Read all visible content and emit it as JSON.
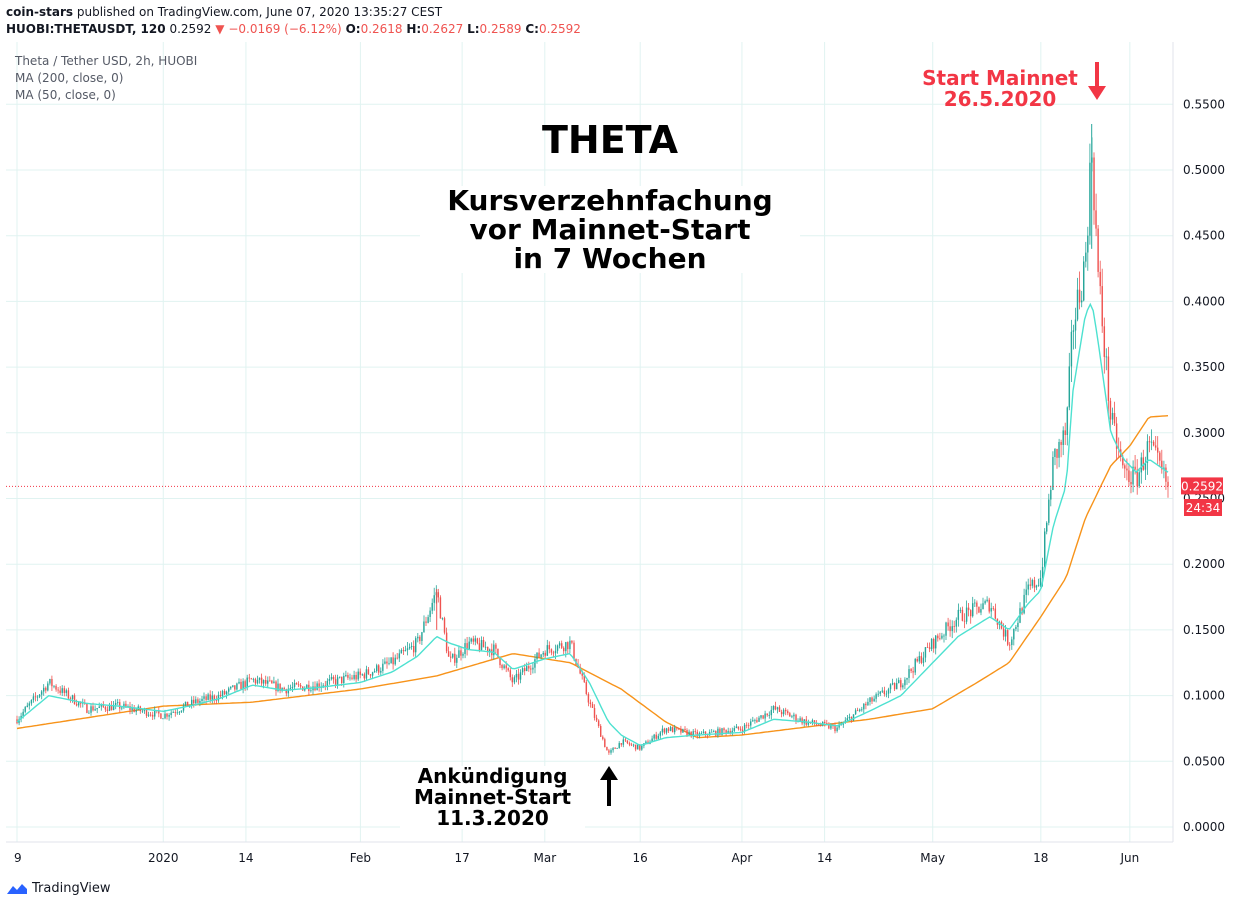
{
  "header": {
    "author": "coin-stars",
    "published": "published on TradingView.com, June 07, 2020 13:35:27 CEST",
    "symbol": "HUOBI:THETAUSDT, 120",
    "last": "0.2592",
    "change": "−0.0169 (−6.12%)",
    "open_label": "O:",
    "open": "0.2618",
    "high_label": "H:",
    "high": "0.2627",
    "low_label": "L:",
    "low": "0.2589",
    "close_label": "C:",
    "close": "0.2592"
  },
  "legend": {
    "title": "Theta / Tether USD, 2h, HUOBI",
    "ma200": "MA (200, close, 0)",
    "ma50": "MA (50, close, 0)"
  },
  "annotations": {
    "title": "THETA",
    "sub1": "Kursverzehnfachung",
    "sub2": "vor Mainnet-Start",
    "sub3": "in 7 Wochen",
    "mainnet1": "Start Mainnet",
    "mainnet2": "26.5.2020",
    "announce1": "Ankündigung",
    "announce2": "Mainnet-Start",
    "announce3": "11.3.2020"
  },
  "price_label": "0.2592",
  "countdown": "24:34",
  "footer": {
    "brand": "TradingView"
  },
  "colors": {
    "up": "#26a69a",
    "down": "#ef5350",
    "ma50": "#4de1d0",
    "ma200": "#f7931a",
    "grid": "#e0f3f1",
    "lastprice": "#f23645",
    "text": "#131722"
  },
  "chart_data": {
    "type": "line",
    "xlabel": "",
    "ylabel": "",
    "ylim": [
      -0.01,
      0.59
    ],
    "y_ticks": [
      "0.0000",
      "0.0500",
      "0.1000",
      "0.1500",
      "0.2000",
      "0.2500",
      "0.3000",
      "0.3500",
      "0.4000",
      "0.4500",
      "0.5000",
      "0.5500"
    ],
    "x_ticks": [
      {
        "d": "2019-12-09",
        "label": "9"
      },
      {
        "d": "2020-01-01",
        "label": "2020"
      },
      {
        "d": "2020-01-14",
        "label": "14"
      },
      {
        "d": "2020-02-01",
        "label": "Feb"
      },
      {
        "d": "2020-02-17",
        "label": "17"
      },
      {
        "d": "2020-03-01",
        "label": "Mar"
      },
      {
        "d": "2020-03-16",
        "label": "16"
      },
      {
        "d": "2020-04-01",
        "label": "Apr"
      },
      {
        "d": "2020-04-14",
        "label": "14"
      },
      {
        "d": "2020-05-01",
        "label": "May"
      },
      {
        "d": "2020-05-18",
        "label": "18"
      },
      {
        "d": "2020-06-01",
        "label": "Jun"
      }
    ],
    "date_range": [
      "2019-12-09",
      "2020-06-07"
    ],
    "last_price": 0.2592,
    "series": [
      {
        "name": "Price",
        "x": [
          "2019-12-09",
          "2019-12-14",
          "2019-12-20",
          "2019-12-25",
          "2020-01-01",
          "2020-01-06",
          "2020-01-10",
          "2020-01-15",
          "2020-01-20",
          "2020-01-25",
          "2020-02-01",
          "2020-02-06",
          "2020-02-10",
          "2020-02-13",
          "2020-02-15",
          "2020-02-18",
          "2020-02-22",
          "2020-02-25",
          "2020-03-01",
          "2020-03-05",
          "2020-03-08",
          "2020-03-11",
          "2020-03-13",
          "2020-03-16",
          "2020-03-20",
          "2020-03-25",
          "2020-04-01",
          "2020-04-06",
          "2020-04-11",
          "2020-04-16",
          "2020-04-21",
          "2020-04-26",
          "2020-05-01",
          "2020-05-05",
          "2020-05-10",
          "2020-05-13",
          "2020-05-16",
          "2020-05-18",
          "2020-05-20",
          "2020-05-22",
          "2020-05-23",
          "2020-05-25",
          "2020-05-26",
          "2020-05-27",
          "2020-05-29",
          "2020-05-31",
          "2020-06-02",
          "2020-06-04",
          "2020-06-07"
        ],
        "values": [
          0.082,
          0.11,
          0.09,
          0.092,
          0.085,
          0.095,
          0.1,
          0.112,
          0.105,
          0.108,
          0.115,
          0.125,
          0.14,
          0.18,
          0.125,
          0.14,
          0.135,
          0.11,
          0.135,
          0.14,
          0.095,
          0.055,
          0.065,
          0.06,
          0.075,
          0.07,
          0.075,
          0.09,
          0.08,
          0.075,
          0.095,
          0.11,
          0.14,
          0.16,
          0.17,
          0.14,
          0.18,
          0.19,
          0.28,
          0.3,
          0.38,
          0.43,
          0.52,
          0.42,
          0.31,
          0.27,
          0.265,
          0.29,
          0.2592
        ]
      },
      {
        "name": "MA (50, close, 0)",
        "x": [
          "2019-12-09",
          "2019-12-14",
          "2019-12-20",
          "2019-12-25",
          "2020-01-01",
          "2020-01-06",
          "2020-01-10",
          "2020-01-15",
          "2020-01-20",
          "2020-01-25",
          "2020-02-01",
          "2020-02-06",
          "2020-02-10",
          "2020-02-13",
          "2020-02-15",
          "2020-02-18",
          "2020-02-22",
          "2020-02-25",
          "2020-03-01",
          "2020-03-05",
          "2020-03-08",
          "2020-03-11",
          "2020-03-13",
          "2020-03-16",
          "2020-03-20",
          "2020-03-25",
          "2020-04-01",
          "2020-04-06",
          "2020-04-11",
          "2020-04-16",
          "2020-04-21",
          "2020-04-26",
          "2020-05-01",
          "2020-05-05",
          "2020-05-10",
          "2020-05-13",
          "2020-05-16",
          "2020-05-18",
          "2020-05-20",
          "2020-05-22",
          "2020-05-23",
          "2020-05-25",
          "2020-05-26",
          "2020-05-27",
          "2020-05-29",
          "2020-05-31",
          "2020-06-02",
          "2020-06-04",
          "2020-06-07"
        ],
        "values": [
          0.08,
          0.1,
          0.094,
          0.092,
          0.088,
          0.093,
          0.098,
          0.108,
          0.104,
          0.106,
          0.11,
          0.118,
          0.13,
          0.145,
          0.14,
          0.135,
          0.133,
          0.12,
          0.128,
          0.132,
          0.11,
          0.08,
          0.07,
          0.062,
          0.068,
          0.07,
          0.072,
          0.082,
          0.08,
          0.077,
          0.088,
          0.1,
          0.125,
          0.145,
          0.16,
          0.15,
          0.17,
          0.18,
          0.23,
          0.26,
          0.33,
          0.39,
          0.4,
          0.37,
          0.3,
          0.28,
          0.27,
          0.28,
          0.27
        ]
      },
      {
        "name": "MA (200, close, 0)",
        "x": [
          "2019-12-09",
          "2020-01-01",
          "2020-01-15",
          "2020-02-01",
          "2020-02-13",
          "2020-02-25",
          "2020-03-05",
          "2020-03-13",
          "2020-03-20",
          "2020-03-25",
          "2020-04-01",
          "2020-04-11",
          "2020-04-21",
          "2020-05-01",
          "2020-05-08",
          "2020-05-13",
          "2020-05-18",
          "2020-05-22",
          "2020-05-25",
          "2020-05-29",
          "2020-06-01",
          "2020-06-04",
          "2020-06-07"
        ],
        "values": [
          0.075,
          0.092,
          0.095,
          0.105,
          0.115,
          0.132,
          0.125,
          0.105,
          0.08,
          0.068,
          0.07,
          0.076,
          0.082,
          0.09,
          0.11,
          0.125,
          0.16,
          0.19,
          0.235,
          0.275,
          0.29,
          0.312,
          0.313
        ]
      }
    ]
  }
}
